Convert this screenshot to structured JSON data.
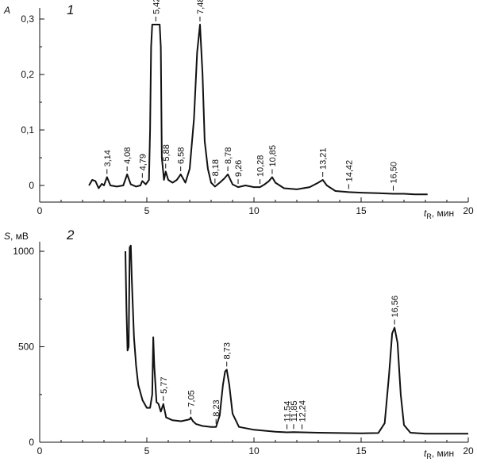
{
  "chart_data": [
    {
      "type": "line",
      "panel_label": "1",
      "ylabel": "A",
      "xlabel_var": "t",
      "xlabel_sub": "R",
      "xlabel_unit": ", мин",
      "xlim": [
        0,
        20
      ],
      "ylim": [
        -0.03,
        0.32
      ],
      "x_ticks": [
        0,
        5,
        10,
        15,
        20
      ],
      "x_tick_labels": [
        "0",
        "5",
        "10",
        "15",
        "20"
      ],
      "y_ticks": [
        0,
        0.1,
        0.2,
        0.3
      ],
      "y_tick_labels": [
        "0",
        "0,1",
        "0,2",
        "0,3"
      ],
      "series": [
        {
          "x": [
            2.3,
            2.45,
            2.6,
            2.75,
            2.9,
            3.0,
            3.14,
            3.3,
            3.6,
            3.9,
            4.08,
            4.25,
            4.5,
            4.7,
            4.79,
            4.95,
            5.1,
            5.15,
            5.2,
            5.25,
            5.6,
            5.65,
            5.7,
            5.8,
            5.88,
            6.0,
            6.2,
            6.4,
            6.58,
            6.8,
            7.0,
            7.2,
            7.35,
            7.48,
            7.6,
            7.7,
            7.85,
            8.0,
            8.18,
            8.4,
            8.6,
            8.78,
            9.0,
            9.26,
            9.6,
            10.0,
            10.28,
            10.5,
            10.7,
            10.85,
            11.0,
            11.4,
            12.0,
            12.6,
            13.0,
            13.21,
            13.4,
            13.8,
            14.42,
            15.0,
            15.8,
            16.5,
            17.0,
            17.5,
            18.0,
            18.1
          ],
          "y": [
            0.0,
            0.01,
            0.008,
            -0.005,
            0.003,
            0.0,
            0.015,
            0.0,
            -0.002,
            0.0,
            0.02,
            0.002,
            -0.002,
            0.0,
            0.008,
            0.002,
            0.01,
            0.1,
            0.25,
            0.29,
            0.29,
            0.25,
            0.05,
            0.01,
            0.025,
            0.01,
            0.005,
            0.01,
            0.02,
            0.005,
            0.03,
            0.12,
            0.24,
            0.29,
            0.2,
            0.08,
            0.03,
            0.005,
            -0.002,
            0.005,
            0.012,
            0.02,
            0.002,
            -0.003,
            0.0,
            -0.003,
            -0.003,
            0.002,
            0.008,
            0.015,
            0.005,
            -0.005,
            -0.007,
            -0.003,
            0.005,
            0.01,
            0.0,
            -0.01,
            -0.012,
            -0.013,
            -0.014,
            -0.015,
            -0.015,
            -0.016,
            -0.016,
            -0.016
          ]
        }
      ],
      "peak_labels": [
        {
          "x": 3.14,
          "y": 0.015,
          "text": "3,14"
        },
        {
          "x": 4.08,
          "y": 0.02,
          "text": "4,08"
        },
        {
          "x": 4.79,
          "y": 0.008,
          "text": "4,79"
        },
        {
          "x": 5.42,
          "y": 0.29,
          "text": "5,42"
        },
        {
          "x": 5.88,
          "y": 0.025,
          "text": "5,88"
        },
        {
          "x": 6.58,
          "y": 0.02,
          "text": "6,58"
        },
        {
          "x": 7.48,
          "y": 0.29,
          "text": "7,48"
        },
        {
          "x": 8.18,
          "y": -0.002,
          "text": "8,18"
        },
        {
          "x": 8.78,
          "y": 0.02,
          "text": "8,78"
        },
        {
          "x": 9.26,
          "y": -0.003,
          "text": "9,26"
        },
        {
          "x": 10.28,
          "y": -0.003,
          "text": "10,28"
        },
        {
          "x": 10.85,
          "y": 0.015,
          "text": "10,85"
        },
        {
          "x": 13.21,
          "y": 0.01,
          "text": "13,21"
        },
        {
          "x": 14.42,
          "y": -0.012,
          "text": "14,42"
        },
        {
          "x": 16.5,
          "y": -0.015,
          "text": "16,50"
        }
      ]
    },
    {
      "type": "line",
      "panel_label": "2",
      "ylabel": "S",
      "ylabel_unit": ", мВ",
      "xlabel_var": "t",
      "xlabel_sub": "R",
      "xlabel_unit": ", мин",
      "xlim": [
        0,
        20
      ],
      "ylim": [
        0,
        1050
      ],
      "x_ticks": [
        0,
        5,
        10,
        15,
        20
      ],
      "x_tick_labels": [
        "0",
        "5",
        "10",
        "15",
        "20"
      ],
      "y_ticks": [
        0,
        500,
        1000
      ],
      "y_tick_labels": [
        "0",
        "500",
        "1000"
      ],
      "series": [
        {
          "x": [
            4.0,
            4.05,
            4.1,
            4.15,
            4.2,
            4.25,
            4.3,
            4.4,
            4.5,
            4.6,
            4.8,
            5.0,
            5.15,
            5.25,
            5.3,
            5.35,
            5.45,
            5.55,
            5.65,
            5.77,
            5.9,
            6.2,
            6.6,
            7.0,
            7.05,
            7.15,
            7.3,
            7.6,
            8.0,
            8.23,
            8.4,
            8.55,
            8.65,
            8.73,
            8.85,
            9.0,
            9.3,
            10.0,
            11.0,
            11.54,
            11.85,
            12.24,
            13.0,
            14.0,
            15.0,
            15.8,
            16.1,
            16.3,
            16.45,
            16.56,
            16.7,
            16.85,
            17.0,
            17.3,
            18.0,
            19.0,
            20.0
          ],
          "y": [
            1000,
            700,
            480,
            500,
            1020,
            1030,
            850,
            550,
            400,
            300,
            220,
            180,
            180,
            250,
            550,
            400,
            210,
            200,
            160,
            200,
            130,
            115,
            110,
            120,
            130,
            110,
            95,
            85,
            80,
            80,
            140,
            300,
            370,
            380,
            300,
            150,
            80,
            65,
            55,
            52,
            53,
            52,
            50,
            48,
            47,
            48,
            100,
            350,
            570,
            600,
            520,
            250,
            90,
            50,
            45,
            45,
            45
          ]
        }
      ],
      "peak_labels": [
        {
          "x": 5.77,
          "y": 200,
          "text": "5,77"
        },
        {
          "x": 7.05,
          "y": 130,
          "text": "7,05"
        },
        {
          "x": 8.23,
          "y": 80,
          "text": "8,23"
        },
        {
          "x": 8.73,
          "y": 380,
          "text": "8,73"
        },
        {
          "x": 11.54,
          "y": 52,
          "text": "11,54"
        },
        {
          "x": 11.85,
          "y": 53,
          "text": "11,85"
        },
        {
          "x": 12.24,
          "y": 52,
          "text": "12,24"
        },
        {
          "x": 16.56,
          "y": 600,
          "text": "16,56"
        }
      ]
    }
  ]
}
